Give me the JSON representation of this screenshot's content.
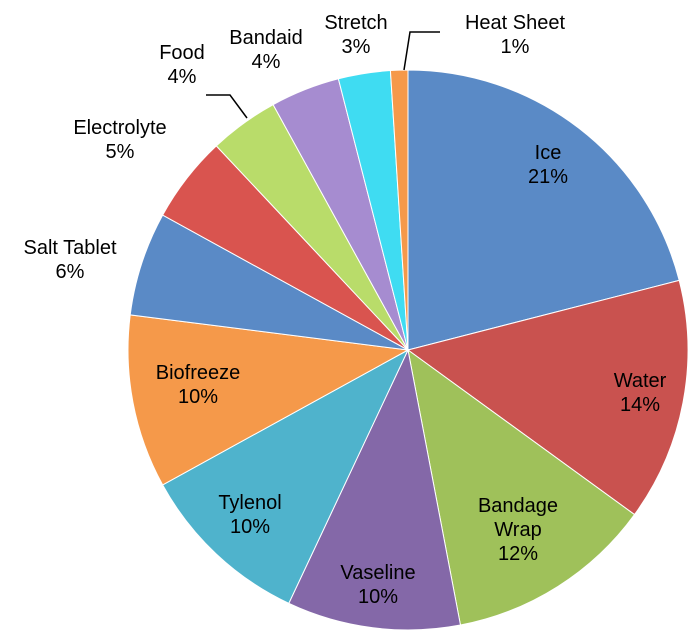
{
  "chart_data": {
    "type": "pie",
    "categories": [
      "Ice",
      "Water",
      "Bandage Wrap",
      "Vaseline",
      "Tylenol",
      "Biofreeze",
      "Salt Tablet",
      "Electrolyte",
      "Food",
      "Bandaid",
      "Stretch",
      "Heat Sheet"
    ],
    "values": [
      21,
      14,
      12,
      10,
      10,
      10,
      6,
      5,
      4,
      4,
      3,
      1
    ],
    "value_labels": [
      "21%",
      "14%",
      "12%",
      "10%",
      "10%",
      "10%",
      "6%",
      "5%",
      "4%",
      "4%",
      "3%",
      "1%"
    ],
    "colors": [
      "#5a8ac6",
      "#c9524f",
      "#9fc15a",
      "#8468a8",
      "#4fb3cc",
      "#f5994a",
      "#5a8ac6",
      "#d9544f",
      "#b9dc6a",
      "#a68cd0",
      "#3fdcf2",
      "#f5994a"
    ]
  }
}
